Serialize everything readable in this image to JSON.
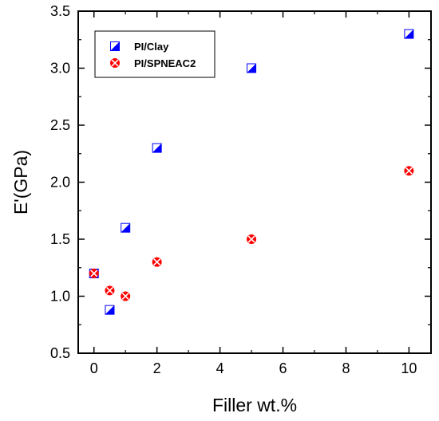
{
  "chart_data": {
    "type": "scatter",
    "xlabel": "Filler wt.%",
    "ylabel": "E'(GPa)",
    "xlim": [
      -0.5,
      10.7
    ],
    "ylim": [
      0.5,
      3.5
    ],
    "xticks": [
      0,
      2,
      4,
      6,
      8,
      10
    ],
    "yticks": [
      0.5,
      1.0,
      1.5,
      2.0,
      2.5,
      3.0,
      3.5
    ],
    "xtick_labels": [
      "0",
      "2",
      "4",
      "6",
      "8",
      "10"
    ],
    "ytick_labels": [
      "0.5",
      "1.0",
      "1.5",
      "2.0",
      "2.5",
      "3.0",
      "3.5"
    ],
    "legend_position": "top-left",
    "grid": false,
    "series": [
      {
        "name": "PI/Clay",
        "marker": "half-filled-square",
        "color": "#0000ff",
        "points": [
          {
            "x": 0,
            "y": 1.2
          },
          {
            "x": 0.5,
            "y": 0.88
          },
          {
            "x": 1,
            "y": 1.6
          },
          {
            "x": 2,
            "y": 2.3
          },
          {
            "x": 5,
            "y": 3.0
          },
          {
            "x": 10,
            "y": 3.3
          }
        ]
      },
      {
        "name": "PI/SPNEAC2",
        "marker": "crossed-circle",
        "color": "#ff0000",
        "points": [
          {
            "x": 0,
            "y": 1.2
          },
          {
            "x": 0.5,
            "y": 1.05
          },
          {
            "x": 1,
            "y": 1.0
          },
          {
            "x": 2,
            "y": 1.3
          },
          {
            "x": 5,
            "y": 1.5
          },
          {
            "x": 10,
            "y": 2.1
          }
        ]
      }
    ]
  }
}
